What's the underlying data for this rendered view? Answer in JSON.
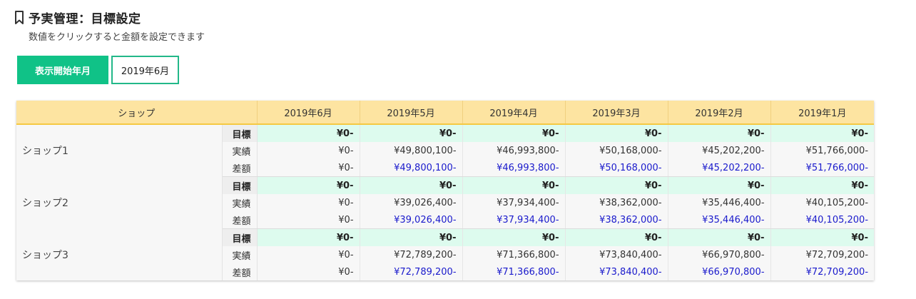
{
  "page": {
    "title": "予実管理：目標設定",
    "subtitle": "数値をクリックすると金額を設定できます"
  },
  "controls": {
    "start_label": "表示開始年月",
    "month_value": "2019年6月"
  },
  "table": {
    "shop_header": "ショップ",
    "months": [
      "2019年6月",
      "2019年5月",
      "2019年4月",
      "2019年3月",
      "2019年2月",
      "2019年1月"
    ],
    "row_labels": {
      "target": "目標",
      "actual": "実績",
      "diff": "差額"
    },
    "shops": [
      {
        "name": "ショップ1",
        "target": [
          "¥0-",
          "¥0-",
          "¥0-",
          "¥0-",
          "¥0-",
          "¥0-"
        ],
        "actual": [
          "¥0-",
          "¥49,800,100-",
          "¥46,993,800-",
          "¥50,168,000-",
          "¥45,202,200-",
          "¥51,766,000-"
        ],
        "diff": [
          "¥0-",
          "¥49,800,100-",
          "¥46,993,800-",
          "¥50,168,000-",
          "¥45,202,200-",
          "¥51,766,000-"
        ]
      },
      {
        "name": "ショップ2",
        "target": [
          "¥0-",
          "¥0-",
          "¥0-",
          "¥0-",
          "¥0-",
          "¥0-"
        ],
        "actual": [
          "¥0-",
          "¥39,026,400-",
          "¥37,934,400-",
          "¥38,362,000-",
          "¥35,446,400-",
          "¥40,105,200-"
        ],
        "diff": [
          "¥0-",
          "¥39,026,400-",
          "¥37,934,400-",
          "¥38,362,000-",
          "¥35,446,400-",
          "¥40,105,200-"
        ]
      },
      {
        "name": "ショップ3",
        "target": [
          "¥0-",
          "¥0-",
          "¥0-",
          "¥0-",
          "¥0-",
          "¥0-"
        ],
        "actual": [
          "¥0-",
          "¥72,789,200-",
          "¥71,366,800-",
          "¥73,840,400-",
          "¥66,970,800-",
          "¥72,709,200-"
        ],
        "diff": [
          "¥0-",
          "¥72,789,200-",
          "¥71,366,800-",
          "¥73,840,400-",
          "¥66,970,800-",
          "¥72,709,200-"
        ]
      }
    ]
  },
  "colors": {
    "accent_green": "#10c287",
    "header_yellow": "#fde4a1",
    "target_row_bg": "#ddfbee",
    "diff_text_blue": "#1a1acc"
  },
  "icons": {
    "title_icon": "bookmark-icon"
  }
}
